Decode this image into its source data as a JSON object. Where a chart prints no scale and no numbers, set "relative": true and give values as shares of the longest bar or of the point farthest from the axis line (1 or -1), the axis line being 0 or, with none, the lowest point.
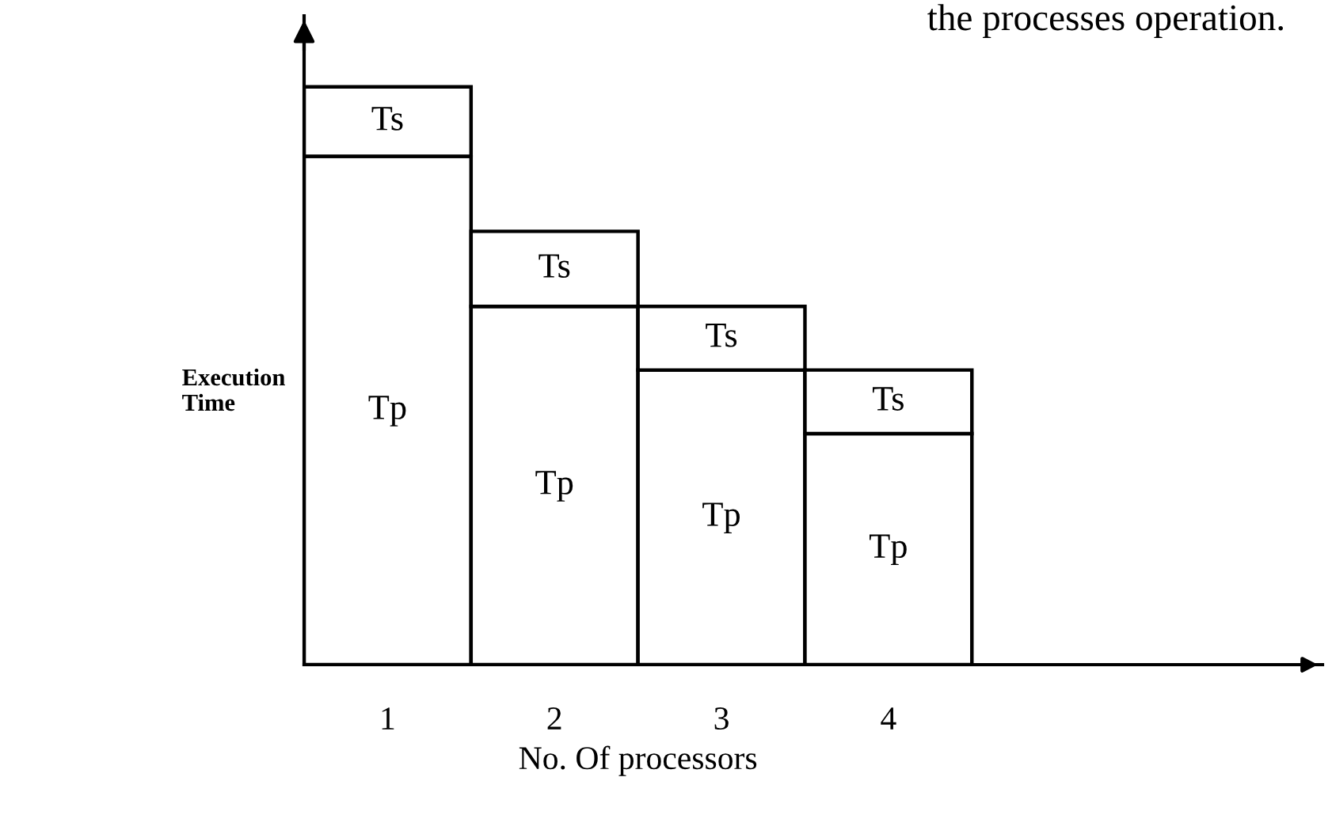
{
  "chart_data": {
    "type": "bar",
    "stacked": true,
    "relative": true,
    "xlabel": "No. Of processors",
    "ylabel": "Execution\nTime",
    "annotations": [
      "the processes operation."
    ],
    "categories": [
      "1",
      "2",
      "3",
      "4"
    ],
    "series": [
      {
        "name": "Tp",
        "color": "#ffffff",
        "values": [
          0.88,
          0.62,
          0.51,
          0.4
        ]
      },
      {
        "name": "Ts",
        "color": "#ffffff",
        "values": [
          0.12,
          0.13,
          0.11,
          0.11
        ]
      }
    ]
  }
}
